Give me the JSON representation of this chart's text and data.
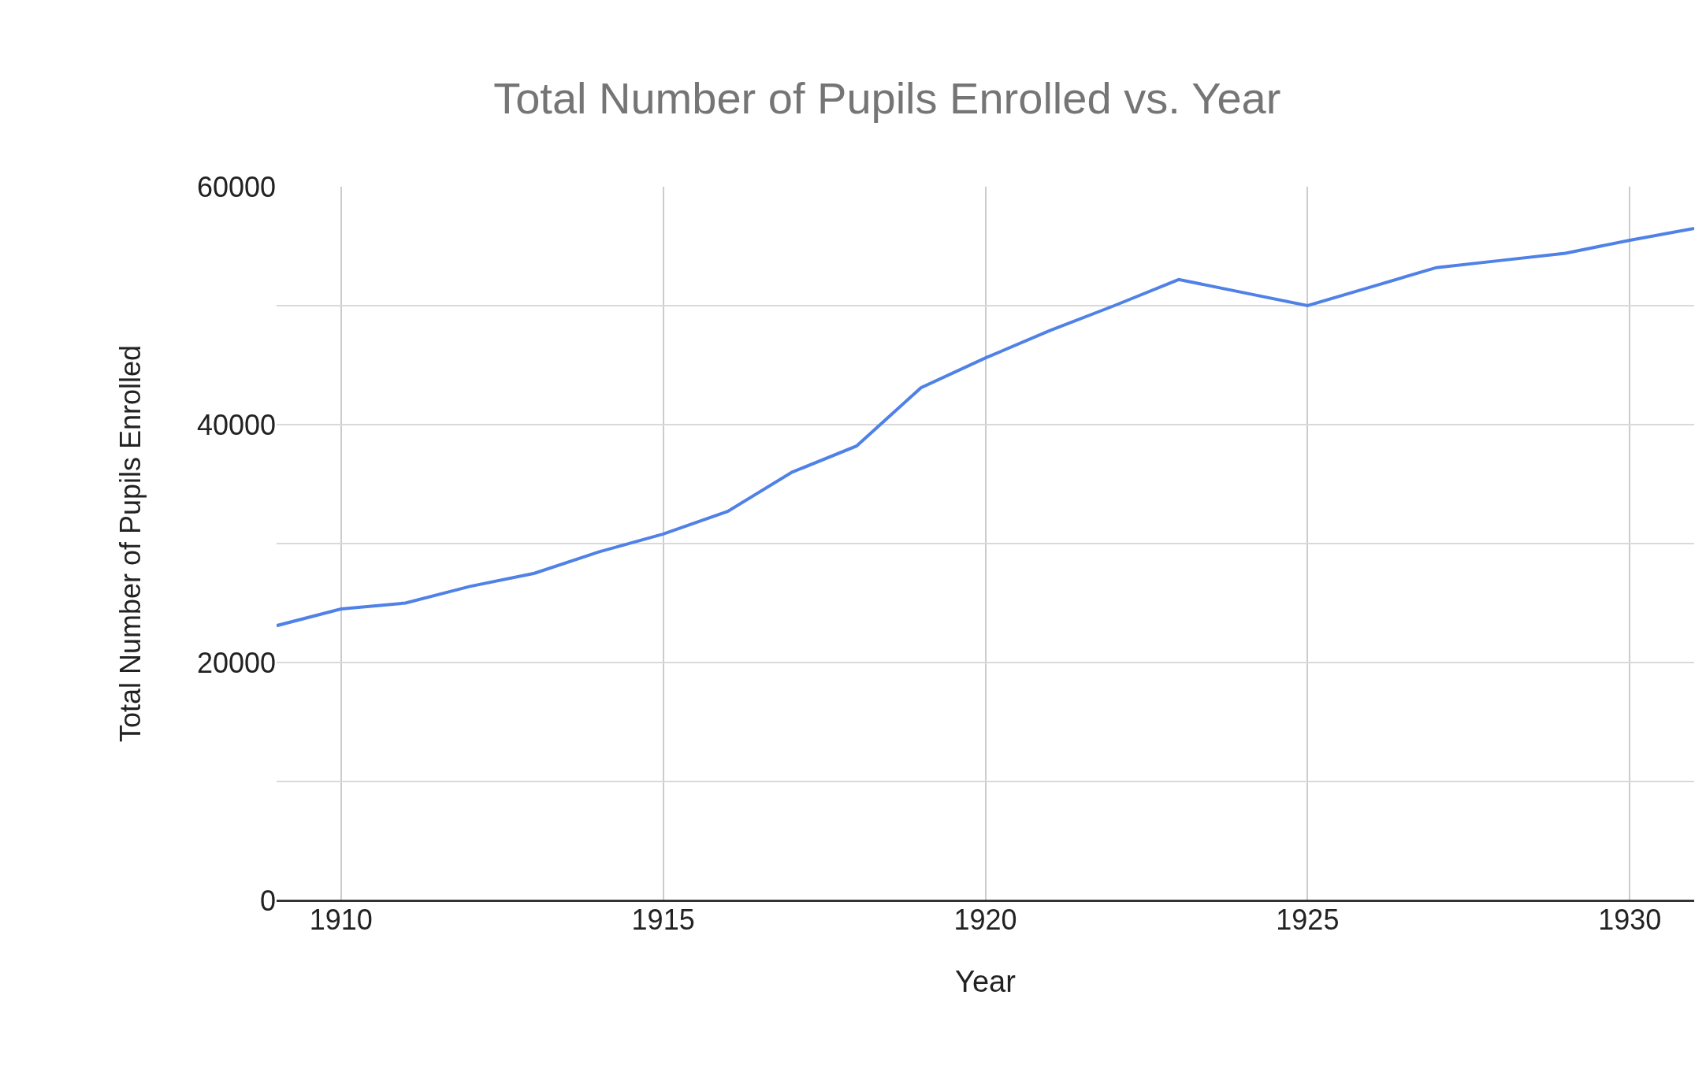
{
  "chart_data": {
    "type": "line",
    "title": "Total Number of Pupils Enrolled vs. Year",
    "xlabel": "Year",
    "ylabel": "Total Number of Pupils Enrolled",
    "x": [
      1909,
      1910,
      1911,
      1912,
      1913,
      1914,
      1915,
      1916,
      1917,
      1918,
      1919,
      1920,
      1921,
      1922,
      1923,
      1924,
      1925,
      1926,
      1927,
      1928,
      1929,
      1930,
      1931
    ],
    "series": [
      {
        "color": "#4f81e6",
        "values": [
          23100,
          24500,
          25000,
          26400,
          27500,
          29300,
          30800,
          32700,
          36000,
          38200,
          43100,
          45600,
          47900,
          50000,
          52200,
          51100,
          50000,
          51600,
          53200,
          53800,
          54400,
          55500,
          56500
        ]
      }
    ],
    "xlim": [
      1909,
      1931
    ],
    "xticks": [
      1910,
      1915,
      1920,
      1925,
      1930
    ],
    "ylim": [
      0,
      60000
    ],
    "yticks": [
      0,
      {
        "value": 10000,
        "label": null
      },
      20000,
      {
        "value": 30000,
        "label": null
      },
      40000,
      {
        "value": 50000,
        "label": null
      },
      60000
    ],
    "grid": true,
    "marker": "none",
    "line_style": "solid"
  }
}
